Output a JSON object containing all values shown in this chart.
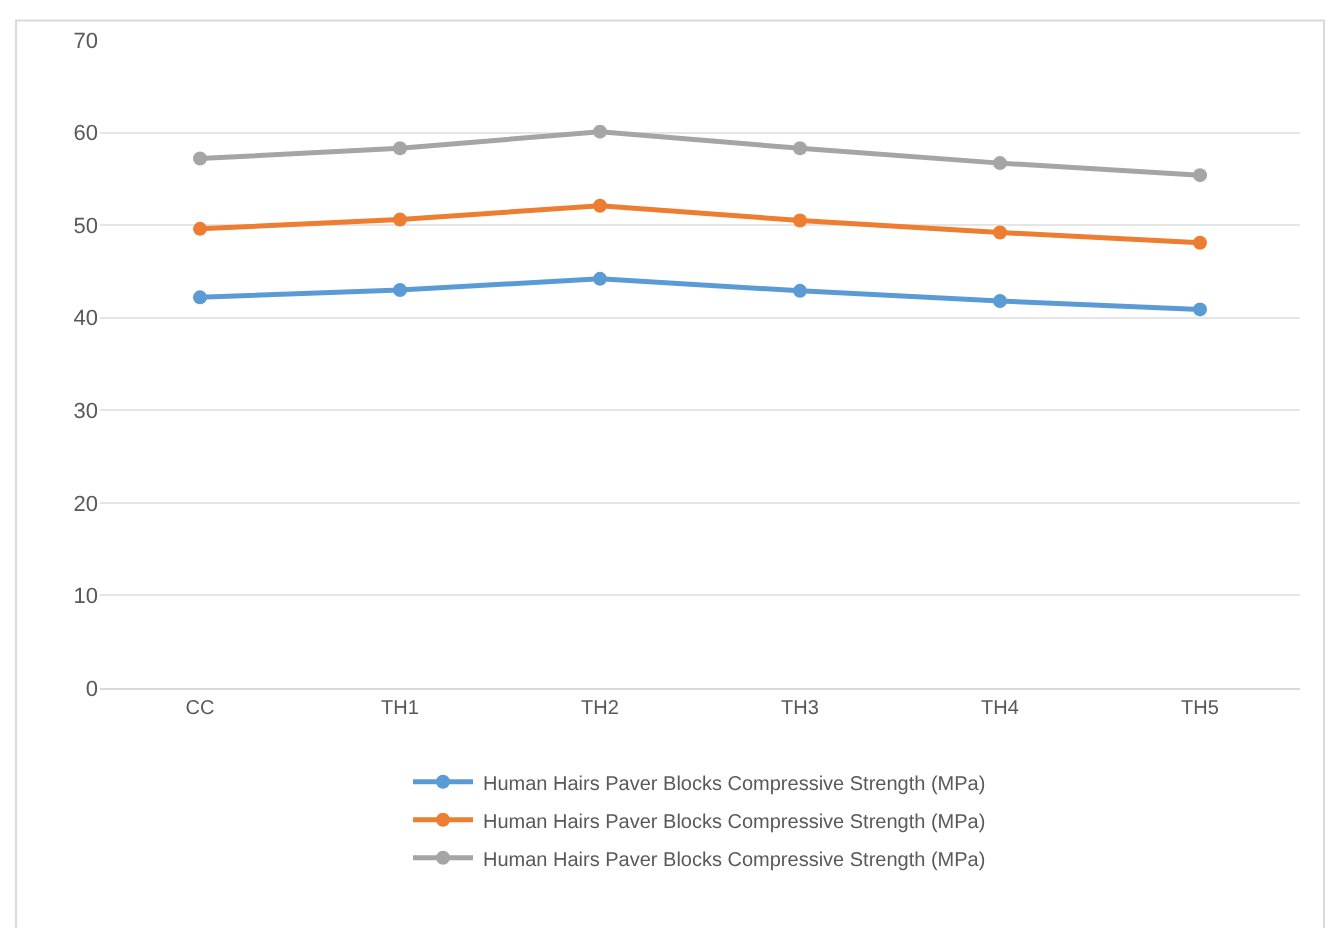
{
  "chart_data": {
    "type": "line",
    "categories": [
      "CC",
      "TH1",
      "TH2",
      "TH3",
      "TH4",
      "TH5"
    ],
    "series": [
      {
        "name": "Human Hairs Paver Blocks Compressive Strength (MPa)",
        "color": "#5b9bd5",
        "values": [
          42.2,
          43.0,
          44.2,
          42.9,
          41.8,
          40.9
        ]
      },
      {
        "name": "Human Hairs Paver Blocks Compressive Strength (MPa)",
        "color": "#ed7d31",
        "values": [
          49.6,
          50.6,
          52.1,
          50.5,
          49.2,
          48.1
        ]
      },
      {
        "name": "Human Hairs Paver Blocks Compressive Strength (MPa)",
        "color": "#a5a5a5",
        "values": [
          57.2,
          58.3,
          60.1,
          58.3,
          56.7,
          55.4
        ]
      }
    ],
    "ylim": [
      0,
      70
    ],
    "yticks": [
      0,
      10,
      20,
      30,
      40,
      50,
      60,
      70
    ],
    "grid": "y",
    "legend": "bottom",
    "marker": "circle",
    "line_style": "solid"
  }
}
